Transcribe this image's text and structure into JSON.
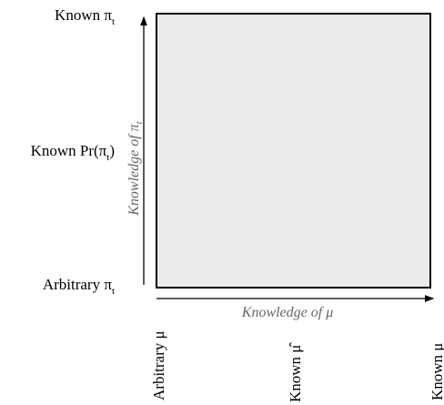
{
  "y_levels": [
    {
      "text": "Known π",
      "sub": "t"
    },
    {
      "text": "Known Pr(π",
      "sub": "t",
      "after": ")"
    },
    {
      "text": "Arbitrary π",
      "sub": "t"
    }
  ],
  "y_axis_label": {
    "text": "Knowledge of π",
    "sub": "t"
  },
  "x_axis_label": "Knowledge of μ",
  "x_levels": [
    "Arbitrary μ",
    "Known μ̂",
    "Known μ"
  ]
}
